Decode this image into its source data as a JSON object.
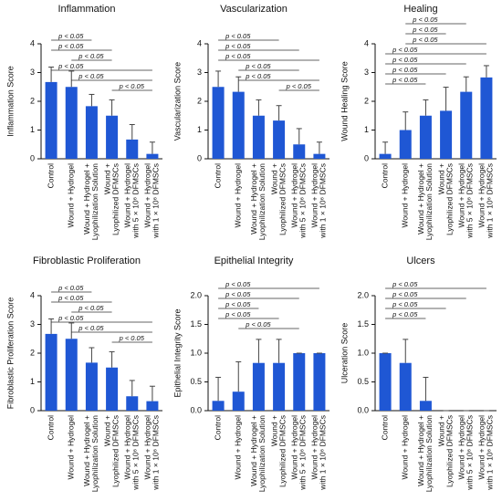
{
  "chart_data": [
    {
      "type": "bar",
      "title": "Inflammation",
      "ylabel": "Inflammation Score",
      "color": "#1f57d4",
      "categories": [
        [
          "Control"
        ],
        [
          "Wound + Hydrogel"
        ],
        [
          "Wound + Hydrogel +",
          "Lyophilization Solution"
        ],
        [
          "Wound +",
          "Lyophilized DFMSCs"
        ],
        [
          "Wound + Hydrogel",
          "with 5 × 10⁶ DFMSCs"
        ],
        [
          "Wound + Hydrogel",
          "with 1 × 10⁶ DFMSCs"
        ]
      ],
      "values": [
        2.67,
        2.5,
        1.83,
        1.5,
        0.67,
        0.17
      ],
      "errors": [
        0.52,
        0.55,
        0.41,
        0.55,
        0.52,
        0.41
      ],
      "ylim": [
        0,
        4
      ],
      "yticks": [
        0,
        1,
        2,
        3,
        4
      ],
      "brackets": [
        {
          "from": 0,
          "to": 2,
          "label": "p < 0.05"
        },
        {
          "from": 0,
          "to": 3,
          "label": "p < 0.05"
        },
        {
          "from": 1,
          "to": 3,
          "label": "p < 0.05"
        },
        {
          "from": 0,
          "to": 5,
          "label": "p < 0.05"
        },
        {
          "from": 1,
          "to": 5,
          "label": "p < 0.05"
        },
        {
          "from": 3,
          "to": 5,
          "label": "p < 0.05"
        }
      ]
    },
    {
      "type": "bar",
      "title": "Vascularization",
      "ylabel": "Vascularization Score",
      "color": "#1f57d4",
      "categories": [
        [
          "Control"
        ],
        [
          "Wound + Hydrogel"
        ],
        [
          "Wound + Hydrogel +",
          "Lyophilization Solution"
        ],
        [
          "Wound +",
          "Lyophilized DFMSCs"
        ],
        [
          "Wound + Hydrogel",
          "with 5 × 10⁶ DFMSCs"
        ],
        [
          "Wound + Hydrogel",
          "with 1 × 10⁶ DFMSCs"
        ]
      ],
      "values": [
        2.5,
        2.33,
        1.5,
        1.33,
        0.5,
        0.17
      ],
      "errors": [
        0.55,
        0.52,
        0.55,
        0.52,
        0.55,
        0.41
      ],
      "ylim": [
        0,
        4
      ],
      "yticks": [
        0,
        1,
        2,
        3,
        4
      ],
      "brackets": [
        {
          "from": 0,
          "to": 3,
          "label": "p < 0.05"
        },
        {
          "from": 0,
          "to": 4,
          "label": "p < 0.05"
        },
        {
          "from": 0,
          "to": 5,
          "label": "p < 0.05"
        },
        {
          "from": 1,
          "to": 4,
          "label": "p < 0.05"
        },
        {
          "from": 1,
          "to": 5,
          "label": "p < 0.05"
        },
        {
          "from": 3,
          "to": 5,
          "label": "p < 0.05"
        }
      ]
    },
    {
      "type": "bar",
      "title": "Healing",
      "ylabel": "Wound Healing Score",
      "color": "#1f57d4",
      "categories": [
        [
          "Control"
        ],
        [
          "Wound + Hydrogel"
        ],
        [
          "Wound + Hydrogel +",
          "Lyophilization Solution"
        ],
        [
          "Wound +",
          "Lyophilized DFMSCs"
        ],
        [
          "Wound + Hydrogel",
          "with 5 × 10⁶ DFMSCs"
        ],
        [
          "Wound + Hydrogel",
          "with 1 × 10⁶ DFMSCs"
        ]
      ],
      "values": [
        0.17,
        1.0,
        1.5,
        1.67,
        2.33,
        2.83
      ],
      "errors": [
        0.41,
        0.63,
        0.55,
        0.82,
        0.52,
        0.41
      ],
      "ylim": [
        0,
        4
      ],
      "yticks": [
        0,
        1,
        2,
        3,
        4
      ],
      "brackets": [
        {
          "from": 1,
          "to": 4,
          "label": "p < 0.05"
        },
        {
          "from": 1,
          "to": 3,
          "label": "p < 0.05"
        },
        {
          "from": 1,
          "to": 5,
          "label": "p < 0.05"
        },
        {
          "from": 0,
          "to": 5,
          "label": "p < 0.05"
        },
        {
          "from": 0,
          "to": 4,
          "label": "p < 0.05"
        },
        {
          "from": 0,
          "to": 3,
          "label": "p < 0.05"
        },
        {
          "from": 0,
          "to": 2,
          "label": "p < 0.05"
        }
      ]
    },
    {
      "type": "bar",
      "title": "Fibroblastic Proliferation",
      "ylabel": "Fibroblastic Proliferation Score",
      "color": "#1f57d4",
      "categories": [
        [
          "Control"
        ],
        [
          "Wound + Hydrogel"
        ],
        [
          "Wound + Hydrogel +",
          "Lyophilization Solution"
        ],
        [
          "Wound +",
          "Lyophilized DFMSCs"
        ],
        [
          "Wound + Hydrogel",
          "with 5 × 10⁶ DFMSCs"
        ],
        [
          "Wound + Hydrogel",
          "with 1 × 10⁶ DFMSCs"
        ]
      ],
      "values": [
        2.67,
        2.5,
        1.67,
        1.5,
        0.5,
        0.33
      ],
      "errors": [
        0.52,
        0.55,
        0.52,
        0.55,
        0.55,
        0.52
      ],
      "ylim": [
        0,
        4
      ],
      "yticks": [
        0,
        1,
        2,
        3,
        4
      ],
      "brackets": [
        {
          "from": 0,
          "to": 2,
          "label": "p < 0.05"
        },
        {
          "from": 0,
          "to": 3,
          "label": "p < 0.05"
        },
        {
          "from": 1,
          "to": 3,
          "label": "p < 0.05"
        },
        {
          "from": 0,
          "to": 5,
          "label": "p < 0.05"
        },
        {
          "from": 1,
          "to": 5,
          "label": "p < 0.05"
        },
        {
          "from": 3,
          "to": 5,
          "label": "p < 0.05"
        }
      ]
    },
    {
      "type": "bar",
      "title": "Epithelial Integrity",
      "ylabel": "Epithelial Integrity Score",
      "color": "#1f57d4",
      "categories": [
        [
          "Control"
        ],
        [
          "Wound + Hydrogel"
        ],
        [
          "Wound + Hydrogel +",
          "Lyophilization Solution"
        ],
        [
          "Wound +",
          "Lyophilized DFMSCs"
        ],
        [
          "Wound + Hydrogel",
          "with 5 × 10⁶ DFMSCs"
        ],
        [
          "Wound + Hydrogel",
          "with 1 × 10⁶ DFMSCs"
        ]
      ],
      "values": [
        0.17,
        0.33,
        0.83,
        0.83,
        1.0,
        1.0
      ],
      "errors": [
        0.41,
        0.52,
        0.41,
        0.41,
        0,
        0
      ],
      "ylim": [
        0,
        2
      ],
      "yticks": [
        {
          "value": 0,
          "label": "0.0"
        },
        {
          "value": 0.5,
          "label": "0.5"
        },
        {
          "value": 1,
          "label": "1.0"
        },
        {
          "value": 1.5,
          "label": "1.5"
        },
        {
          "value": 2,
          "label": "2.0"
        }
      ],
      "brackets": [
        {
          "from": 0,
          "to": 5,
          "label": "p < 0.05"
        },
        {
          "from": 0,
          "to": 4,
          "label": "p < 0.05"
        },
        {
          "from": 0,
          "to": 2,
          "label": "p < 0.05"
        },
        {
          "from": 0,
          "to": 3,
          "label": "p < 0.05"
        },
        {
          "from": 1,
          "to": 4,
          "label": "p < 0.05"
        }
      ]
    },
    {
      "type": "bar",
      "title": "Ulcers",
      "ylabel": "Ulceration Score",
      "color": "#1f57d4",
      "categories": [
        [
          "Control"
        ],
        [
          "Wound + Hydrogel"
        ],
        [
          "Wound + Hydrogel +",
          "Lyophilization Solution"
        ],
        [
          "Wound +",
          "Lyophilized DFMSCs"
        ],
        [
          "Wound + Hydrogel",
          "with 5 × 10⁶ DFMSCs"
        ],
        [
          "Wound + Hydrogel",
          "with 1 × 10⁶ DFMSCs"
        ]
      ],
      "values": [
        1.0,
        0.83,
        0.17,
        0,
        0,
        0
      ],
      "errors": [
        0,
        0.41,
        0.41,
        0,
        0,
        0
      ],
      "ylim": [
        0,
        2
      ],
      "yticks": [
        {
          "value": 0,
          "label": "0.0"
        },
        {
          "value": 0.5,
          "label": "0.5"
        },
        {
          "value": 1,
          "label": "1.0"
        },
        {
          "value": 1.5,
          "label": "1.5"
        },
        {
          "value": 2,
          "label": "2.0"
        }
      ],
      "brackets": [
        {
          "from": 0,
          "to": 5,
          "label": "p < 0.05"
        },
        {
          "from": 0,
          "to": 4,
          "label": "p < 0.05"
        },
        {
          "from": 0,
          "to": 3,
          "label": "p < 0.05"
        },
        {
          "from": 0,
          "to": 2,
          "label": "p < 0.05"
        }
      ]
    }
  ]
}
